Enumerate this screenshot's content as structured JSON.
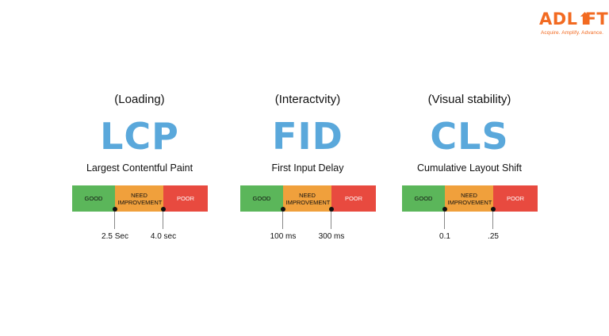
{
  "logo": {
    "word_part1": "ADL",
    "arrow_glyph": "⬆",
    "word_part2": "FT",
    "tagline": "Acquire. Amplify. Advance."
  },
  "metrics": [
    {
      "kind": "(Loading)",
      "abbr": "LCP",
      "full_name": "Largest Contentful Paint",
      "segments": {
        "good": "GOOD",
        "need": "NEED IMPROVEMENT",
        "poor": "POOR"
      },
      "thresholds": [
        "2.5 Sec",
        "4.0 sec"
      ]
    },
    {
      "kind": "(Interactvity)",
      "abbr": "FID",
      "full_name": "First Input Delay",
      "segments": {
        "good": "GOOD",
        "need": "NEED IMPROVEMENT",
        "poor": "POOR"
      },
      "thresholds": [
        "100 ms",
        "300 ms"
      ]
    },
    {
      "kind": "(Visual stability)",
      "abbr": "CLS",
      "full_name": "Cumulative Layout Shift",
      "segments": {
        "good": "GOOD",
        "need": "NEED IMPROVEMENT",
        "poor": "POOR"
      },
      "thresholds": [
        "0.1",
        ".25"
      ]
    }
  ],
  "colors": {
    "good": "#5bb65a",
    "need": "#f0a03c",
    "poor": "#e84a3f",
    "abbr": "#5aa8db",
    "brand": "#f26a21"
  }
}
